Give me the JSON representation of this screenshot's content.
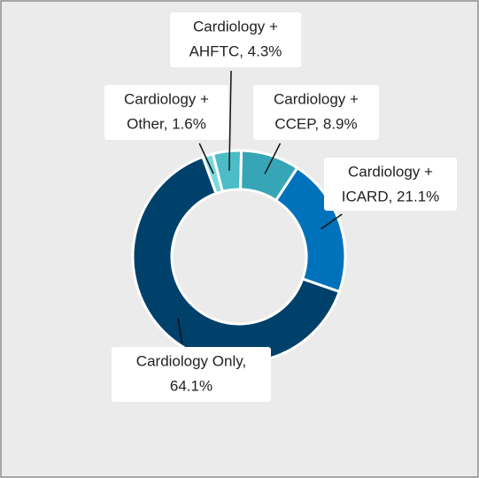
{
  "chart_data": {
    "type": "donut",
    "values": [
      1.6,
      4.3,
      8.9,
      21.1,
      64.1
    ],
    "value_labels": [
      [
        "Cardiology +",
        "Other, 1.6%"
      ],
      [
        "Cardiology +",
        "AHFTC, 4.3%"
      ],
      [
        "Cardiology +",
        "CCEP, 8.9%"
      ],
      [
        "Cardiology +",
        "ICARD, 21.1%"
      ],
      [
        "Cardiology Only,",
        "64.1%"
      ]
    ],
    "colors": [
      "#7dd8dc",
      "#4cbcc6",
      "#36a6b6",
      "#0072bb",
      "#00416c"
    ]
  }
}
